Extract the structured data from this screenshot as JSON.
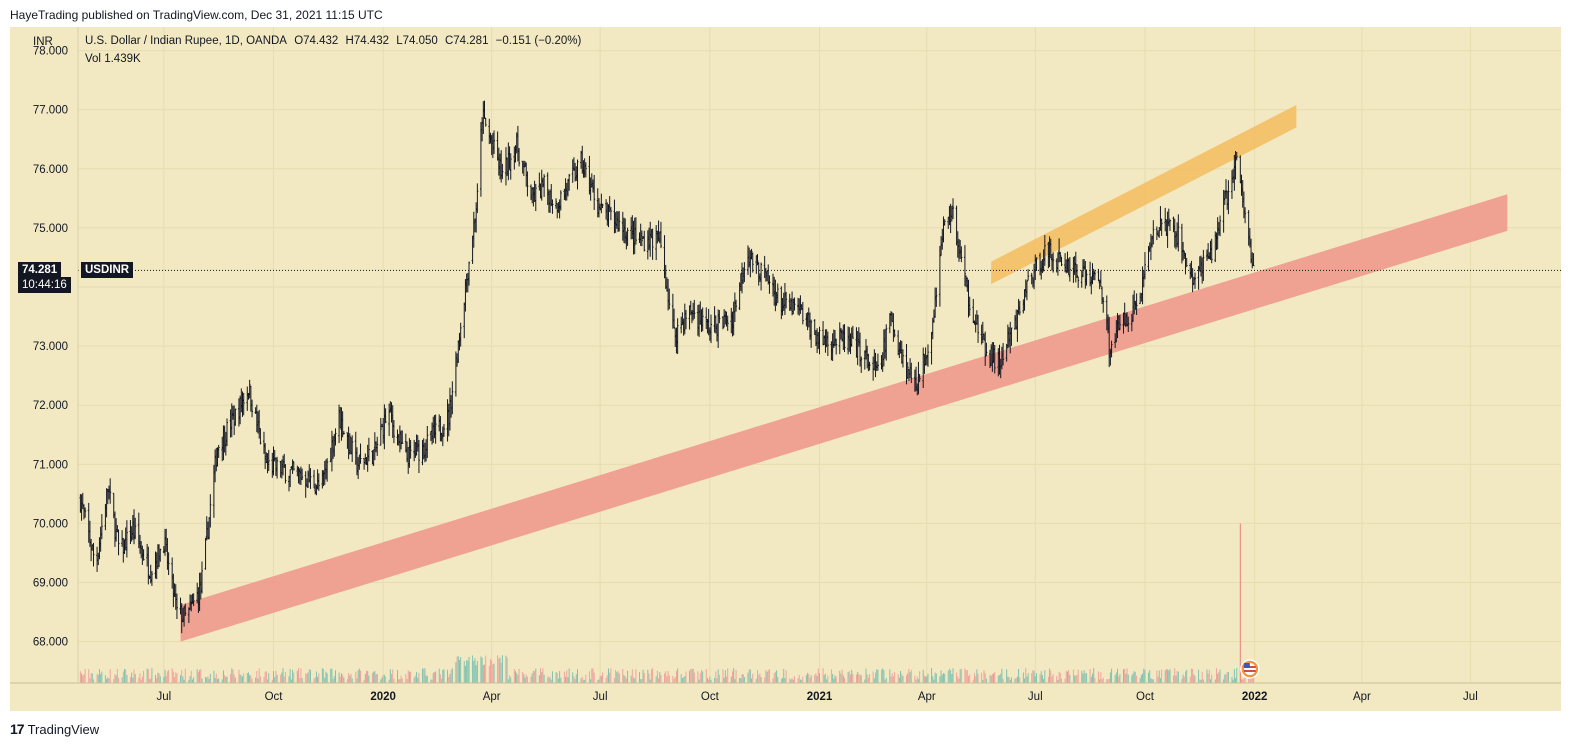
{
  "header": {
    "published_line": "HayeTrading published on TradingView.com, Dec 31, 2021 11:15 UTC"
  },
  "footer": {
    "brand": "TradingView",
    "logo_glyph": "17"
  },
  "legend": {
    "axis_unit": "INR",
    "symbol_desc": "U.S. Dollar / Indian Rupee, 1D, OANDA",
    "open": "O74.432",
    "high": "H74.432",
    "low": "L74.050",
    "close": "C74.281",
    "change": "−0.151 (−0.20%)",
    "vol_label": "Vol",
    "vol_value": "1.439K"
  },
  "price_tag": {
    "value": "74.281",
    "countdown": "10:44:16",
    "symbol": "USDINR"
  },
  "colors": {
    "background": "#f2e9c2",
    "candle": "#131722",
    "support_band": "#f0958a",
    "resistance_band": "#f5bc5e",
    "volume_up": "#7fc2b0",
    "volume_down": "#f0a49c"
  },
  "chart_data": {
    "type": "candlestick",
    "symbol": "USDINR",
    "timeframe": "1D",
    "y_axis": {
      "ticks": [
        "68.000",
        "69.000",
        "70.000",
        "71.000",
        "72.000",
        "73.000",
        "74.000",
        "75.000",
        "76.000",
        "77.000",
        "78.000"
      ],
      "ylim": [
        67.3,
        78.4
      ]
    },
    "x_axis": {
      "ticks": [
        {
          "label": "Jul",
          "date": "2019-07-01"
        },
        {
          "label": "Oct",
          "date": "2019-10-01"
        },
        {
          "label": "2020",
          "date": "2020-01-01"
        },
        {
          "label": "Apr",
          "date": "2020-04-01"
        },
        {
          "label": "Jul",
          "date": "2020-07-01"
        },
        {
          "label": "Oct",
          "date": "2020-10-01"
        },
        {
          "label": "2021",
          "date": "2021-01-01"
        },
        {
          "label": "Apr",
          "date": "2021-04-01"
        },
        {
          "label": "Jul",
          "date": "2021-07-01"
        },
        {
          "label": "Oct",
          "date": "2021-10-01"
        },
        {
          "label": "2022",
          "date": "2022-01-01"
        },
        {
          "label": "Apr",
          "date": "2022-04-01"
        },
        {
          "label": "Jul",
          "date": "2022-07-01"
        }
      ],
      "xlim": [
        "2019-04-20",
        "2022-09-15"
      ]
    },
    "last_price": 74.281,
    "price_path": [
      {
        "date": "2019-04-22",
        "value": 70.4
      },
      {
        "date": "2019-05-05",
        "value": 69.3
      },
      {
        "date": "2019-05-15",
        "value": 70.6
      },
      {
        "date": "2019-05-25",
        "value": 69.5
      },
      {
        "date": "2019-06-05",
        "value": 69.9
      },
      {
        "date": "2019-06-20",
        "value": 69.2
      },
      {
        "date": "2019-07-01",
        "value": 69.7
      },
      {
        "date": "2019-07-12",
        "value": 68.5
      },
      {
        "date": "2019-07-20",
        "value": 68.4
      },
      {
        "date": "2019-08-01",
        "value": 68.9
      },
      {
        "date": "2019-08-15",
        "value": 71.3
      },
      {
        "date": "2019-09-01",
        "value": 71.9
      },
      {
        "date": "2019-09-10",
        "value": 72.3
      },
      {
        "date": "2019-09-25",
        "value": 71.0
      },
      {
        "date": "2019-10-10",
        "value": 70.9
      },
      {
        "date": "2019-10-25",
        "value": 70.8
      },
      {
        "date": "2019-11-10",
        "value": 70.6
      },
      {
        "date": "2019-11-25",
        "value": 71.8
      },
      {
        "date": "2019-12-10",
        "value": 71.0
      },
      {
        "date": "2019-12-25",
        "value": 71.2
      },
      {
        "date": "2020-01-05",
        "value": 71.9
      },
      {
        "date": "2020-01-20",
        "value": 71.1
      },
      {
        "date": "2020-02-05",
        "value": 71.3
      },
      {
        "date": "2020-02-25",
        "value": 71.8
      },
      {
        "date": "2020-03-10",
        "value": 74.0
      },
      {
        "date": "2020-03-20",
        "value": 75.5
      },
      {
        "date": "2020-03-24",
        "value": 76.9
      },
      {
        "date": "2020-04-10",
        "value": 75.9
      },
      {
        "date": "2020-04-22",
        "value": 76.4
      },
      {
        "date": "2020-05-05",
        "value": 75.5
      },
      {
        "date": "2020-05-15",
        "value": 75.7
      },
      {
        "date": "2020-05-25",
        "value": 75.4
      },
      {
        "date": "2020-06-01",
        "value": 75.6
      },
      {
        "date": "2020-06-15",
        "value": 76.1
      },
      {
        "date": "2020-07-01",
        "value": 75.3
      },
      {
        "date": "2020-07-15",
        "value": 75.1
      },
      {
        "date": "2020-07-31",
        "value": 74.8
      },
      {
        "date": "2020-08-20",
        "value": 74.8
      },
      {
        "date": "2020-09-01",
        "value": 73.2
      },
      {
        "date": "2020-09-15",
        "value": 73.6
      },
      {
        "date": "2020-10-01",
        "value": 73.3
      },
      {
        "date": "2020-10-20",
        "value": 73.5
      },
      {
        "date": "2020-11-01",
        "value": 74.6
      },
      {
        "date": "2020-11-15",
        "value": 74.2
      },
      {
        "date": "2020-12-01",
        "value": 73.7
      },
      {
        "date": "2020-12-15",
        "value": 73.6
      },
      {
        "date": "2021-01-01",
        "value": 73.1
      },
      {
        "date": "2021-01-20",
        "value": 73.1
      },
      {
        "date": "2021-02-05",
        "value": 72.9
      },
      {
        "date": "2021-02-20",
        "value": 72.5
      },
      {
        "date": "2021-03-01",
        "value": 73.5
      },
      {
        "date": "2021-03-15",
        "value": 72.6
      },
      {
        "date": "2021-03-25",
        "value": 72.4
      },
      {
        "date": "2021-04-05",
        "value": 73.3
      },
      {
        "date": "2021-04-15",
        "value": 75.0
      },
      {
        "date": "2021-04-22",
        "value": 75.3
      },
      {
        "date": "2021-05-05",
        "value": 73.9
      },
      {
        "date": "2021-05-20",
        "value": 72.9
      },
      {
        "date": "2021-06-01",
        "value": 72.7
      },
      {
        "date": "2021-06-15",
        "value": 73.4
      },
      {
        "date": "2021-06-25",
        "value": 74.1
      },
      {
        "date": "2021-07-10",
        "value": 74.6
      },
      {
        "date": "2021-07-25",
        "value": 74.4
      },
      {
        "date": "2021-08-10",
        "value": 74.2
      },
      {
        "date": "2021-08-25",
        "value": 74.1
      },
      {
        "date": "2021-09-01",
        "value": 73.0
      },
      {
        "date": "2021-09-15",
        "value": 73.5
      },
      {
        "date": "2021-09-25",
        "value": 73.7
      },
      {
        "date": "2021-10-05",
        "value": 74.7
      },
      {
        "date": "2021-10-15",
        "value": 75.1
      },
      {
        "date": "2021-10-28",
        "value": 74.9
      },
      {
        "date": "2021-11-10",
        "value": 74.1
      },
      {
        "date": "2021-11-25",
        "value": 74.5
      },
      {
        "date": "2021-12-05",
        "value": 75.3
      },
      {
        "date": "2021-12-17",
        "value": 76.1
      },
      {
        "date": "2021-12-28",
        "value": 74.7
      },
      {
        "date": "2021-12-31",
        "value": 74.3
      }
    ],
    "annotations": [
      {
        "type": "band",
        "name": "support",
        "color": "#f0958a",
        "lower_start": {
          "date": "2019-07-15",
          "value": 68.0
        },
        "lower_end": {
          "date": "2022-08-01",
          "value": 74.95
        },
        "thickness": 0.62
      },
      {
        "type": "band",
        "name": "resistance",
        "color": "#f5bc5e",
        "lower_start": {
          "date": "2021-05-25",
          "value": 74.05
        },
        "lower_end": {
          "date": "2022-02-05",
          "value": 76.7
        },
        "thickness": 0.38
      }
    ],
    "volume": {
      "last": "1.439K",
      "spike_date": "2021-12-20"
    }
  }
}
